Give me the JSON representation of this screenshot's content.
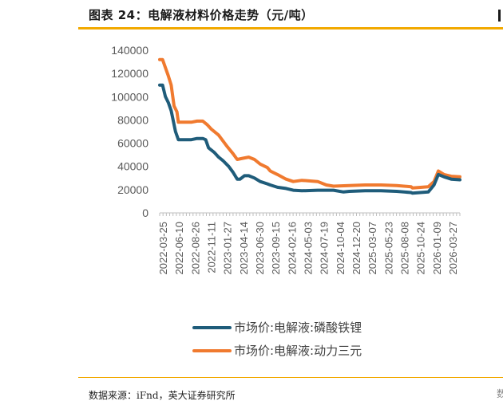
{
  "header": {
    "title": "图表 24：电解液材料价格走势（元/吨）"
  },
  "footer": {
    "source": "数据来源：iFnd，英大证券研究所",
    "right_fragment": "数"
  },
  "colors": {
    "accent": "#f2a900",
    "series_lfp": "#1f5c7a",
    "series_ncm": "#f07a2f",
    "axis": "#bfbfbf",
    "tick_text": "#595959"
  },
  "chart_data": {
    "type": "line",
    "title": "",
    "xlabel": "",
    "ylabel": "",
    "ylim": [
      0,
      140000
    ],
    "yticks": [
      "0",
      "20000",
      "40000",
      "60000",
      "80000",
      "100000",
      "120000",
      "140000"
    ],
    "x_tick_labels": [
      "2022-03-25",
      "2022-06-10",
      "2022-08-26",
      "2022-11-11",
      "2023-01-27",
      "2023-04-14",
      "2023-06-30",
      "2023-09-15",
      "2024-02-16",
      "2024-05-03",
      "2024-07-19",
      "2024-10-04",
      "2024-12-20",
      "2025-03-07",
      "2025-05-23",
      "2025-08-08",
      "2025-10-24",
      "2026-01-09",
      "2026-03-27"
    ],
    "legend_placement": "bottom",
    "grid": false,
    "series": [
      {
        "name": "市场价:电解液:磷酸铁锂",
        "points": [
          [
            "2022-03-25",
            110000
          ],
          [
            "2022-04-08",
            110000
          ],
          [
            "2022-04-22",
            100000
          ],
          [
            "2022-05-06",
            95000
          ],
          [
            "2022-05-20",
            88000
          ],
          [
            "2022-06-10",
            70000
          ],
          [
            "2022-06-24",
            63000
          ],
          [
            "2022-07-22",
            63000
          ],
          [
            "2022-08-26",
            63000
          ],
          [
            "2022-09-23",
            64000
          ],
          [
            "2022-10-21",
            64000
          ],
          [
            "2022-11-04",
            63000
          ],
          [
            "2022-11-18",
            56000
          ],
          [
            "2022-12-16",
            52000
          ],
          [
            "2023-01-06",
            48000
          ],
          [
            "2023-01-27",
            45000
          ],
          [
            "2023-02-24",
            40000
          ],
          [
            "2023-03-17",
            35000
          ],
          [
            "2023-04-07",
            29000
          ],
          [
            "2023-04-21",
            29000
          ],
          [
            "2023-05-12",
            32000
          ],
          [
            "2023-06-02",
            32000
          ],
          [
            "2023-06-30",
            30000
          ],
          [
            "2023-07-28",
            27000
          ],
          [
            "2023-09-01",
            25000
          ],
          [
            "2023-09-15",
            24000
          ],
          [
            "2023-10-20",
            22000
          ],
          [
            "2023-12-01",
            21000
          ],
          [
            "2024-01-05",
            19500
          ],
          [
            "2024-02-16",
            19000
          ],
          [
            "2024-05-03",
            19500
          ],
          [
            "2024-07-19",
            19500
          ],
          [
            "2024-09-06",
            18000
          ],
          [
            "2024-10-04",
            18500
          ],
          [
            "2024-12-20",
            19000
          ],
          [
            "2025-03-07",
            19000
          ],
          [
            "2025-05-23",
            18500
          ],
          [
            "2025-08-01",
            17500
          ],
          [
            "2025-08-08",
            17000
          ],
          [
            "2025-10-24",
            18000
          ],
          [
            "2025-11-21",
            24000
          ],
          [
            "2025-12-12",
            33000
          ],
          [
            "2026-01-09",
            31000
          ],
          [
            "2026-02-13",
            29000
          ],
          [
            "2026-03-27",
            28500
          ]
        ]
      },
      {
        "name": "市场价:电解液:动力三元",
        "points": [
          [
            "2022-03-25",
            132000
          ],
          [
            "2022-04-08",
            132000
          ],
          [
            "2022-04-22",
            125000
          ],
          [
            "2022-05-06",
            118000
          ],
          [
            "2022-05-20",
            110000
          ],
          [
            "2022-06-03",
            92000
          ],
          [
            "2022-06-17",
            87000
          ],
          [
            "2022-06-24",
            78000
          ],
          [
            "2022-08-26",
            78000
          ],
          [
            "2022-09-23",
            79000
          ],
          [
            "2022-10-21",
            79000
          ],
          [
            "2022-11-11",
            76000
          ],
          [
            "2022-12-02",
            72000
          ],
          [
            "2023-01-06",
            67000
          ],
          [
            "2023-01-27",
            62000
          ],
          [
            "2023-02-17",
            57000
          ],
          [
            "2023-03-17",
            51000
          ],
          [
            "2023-04-07",
            46000
          ],
          [
            "2023-05-05",
            47000
          ],
          [
            "2023-06-02",
            48000
          ],
          [
            "2023-06-30",
            46000
          ],
          [
            "2023-07-28",
            42000
          ],
          [
            "2023-09-01",
            39000
          ],
          [
            "2023-09-15",
            36000
          ],
          [
            "2023-10-20",
            33000
          ],
          [
            "2023-12-01",
            29000
          ],
          [
            "2024-01-05",
            27000
          ],
          [
            "2024-02-16",
            28000
          ],
          [
            "2024-05-03",
            27000
          ],
          [
            "2024-06-14",
            24000
          ],
          [
            "2024-07-19",
            23000
          ],
          [
            "2024-10-04",
            23500
          ],
          [
            "2024-12-20",
            24000
          ],
          [
            "2025-03-07",
            24000
          ],
          [
            "2025-05-23",
            23500
          ],
          [
            "2025-08-01",
            22500
          ],
          [
            "2025-08-08",
            21500
          ],
          [
            "2025-10-24",
            22500
          ],
          [
            "2025-11-21",
            27000
          ],
          [
            "2025-12-12",
            36000
          ],
          [
            "2026-01-09",
            33000
          ],
          [
            "2026-02-13",
            31500
          ],
          [
            "2026-03-27",
            31000
          ]
        ]
      }
    ]
  }
}
